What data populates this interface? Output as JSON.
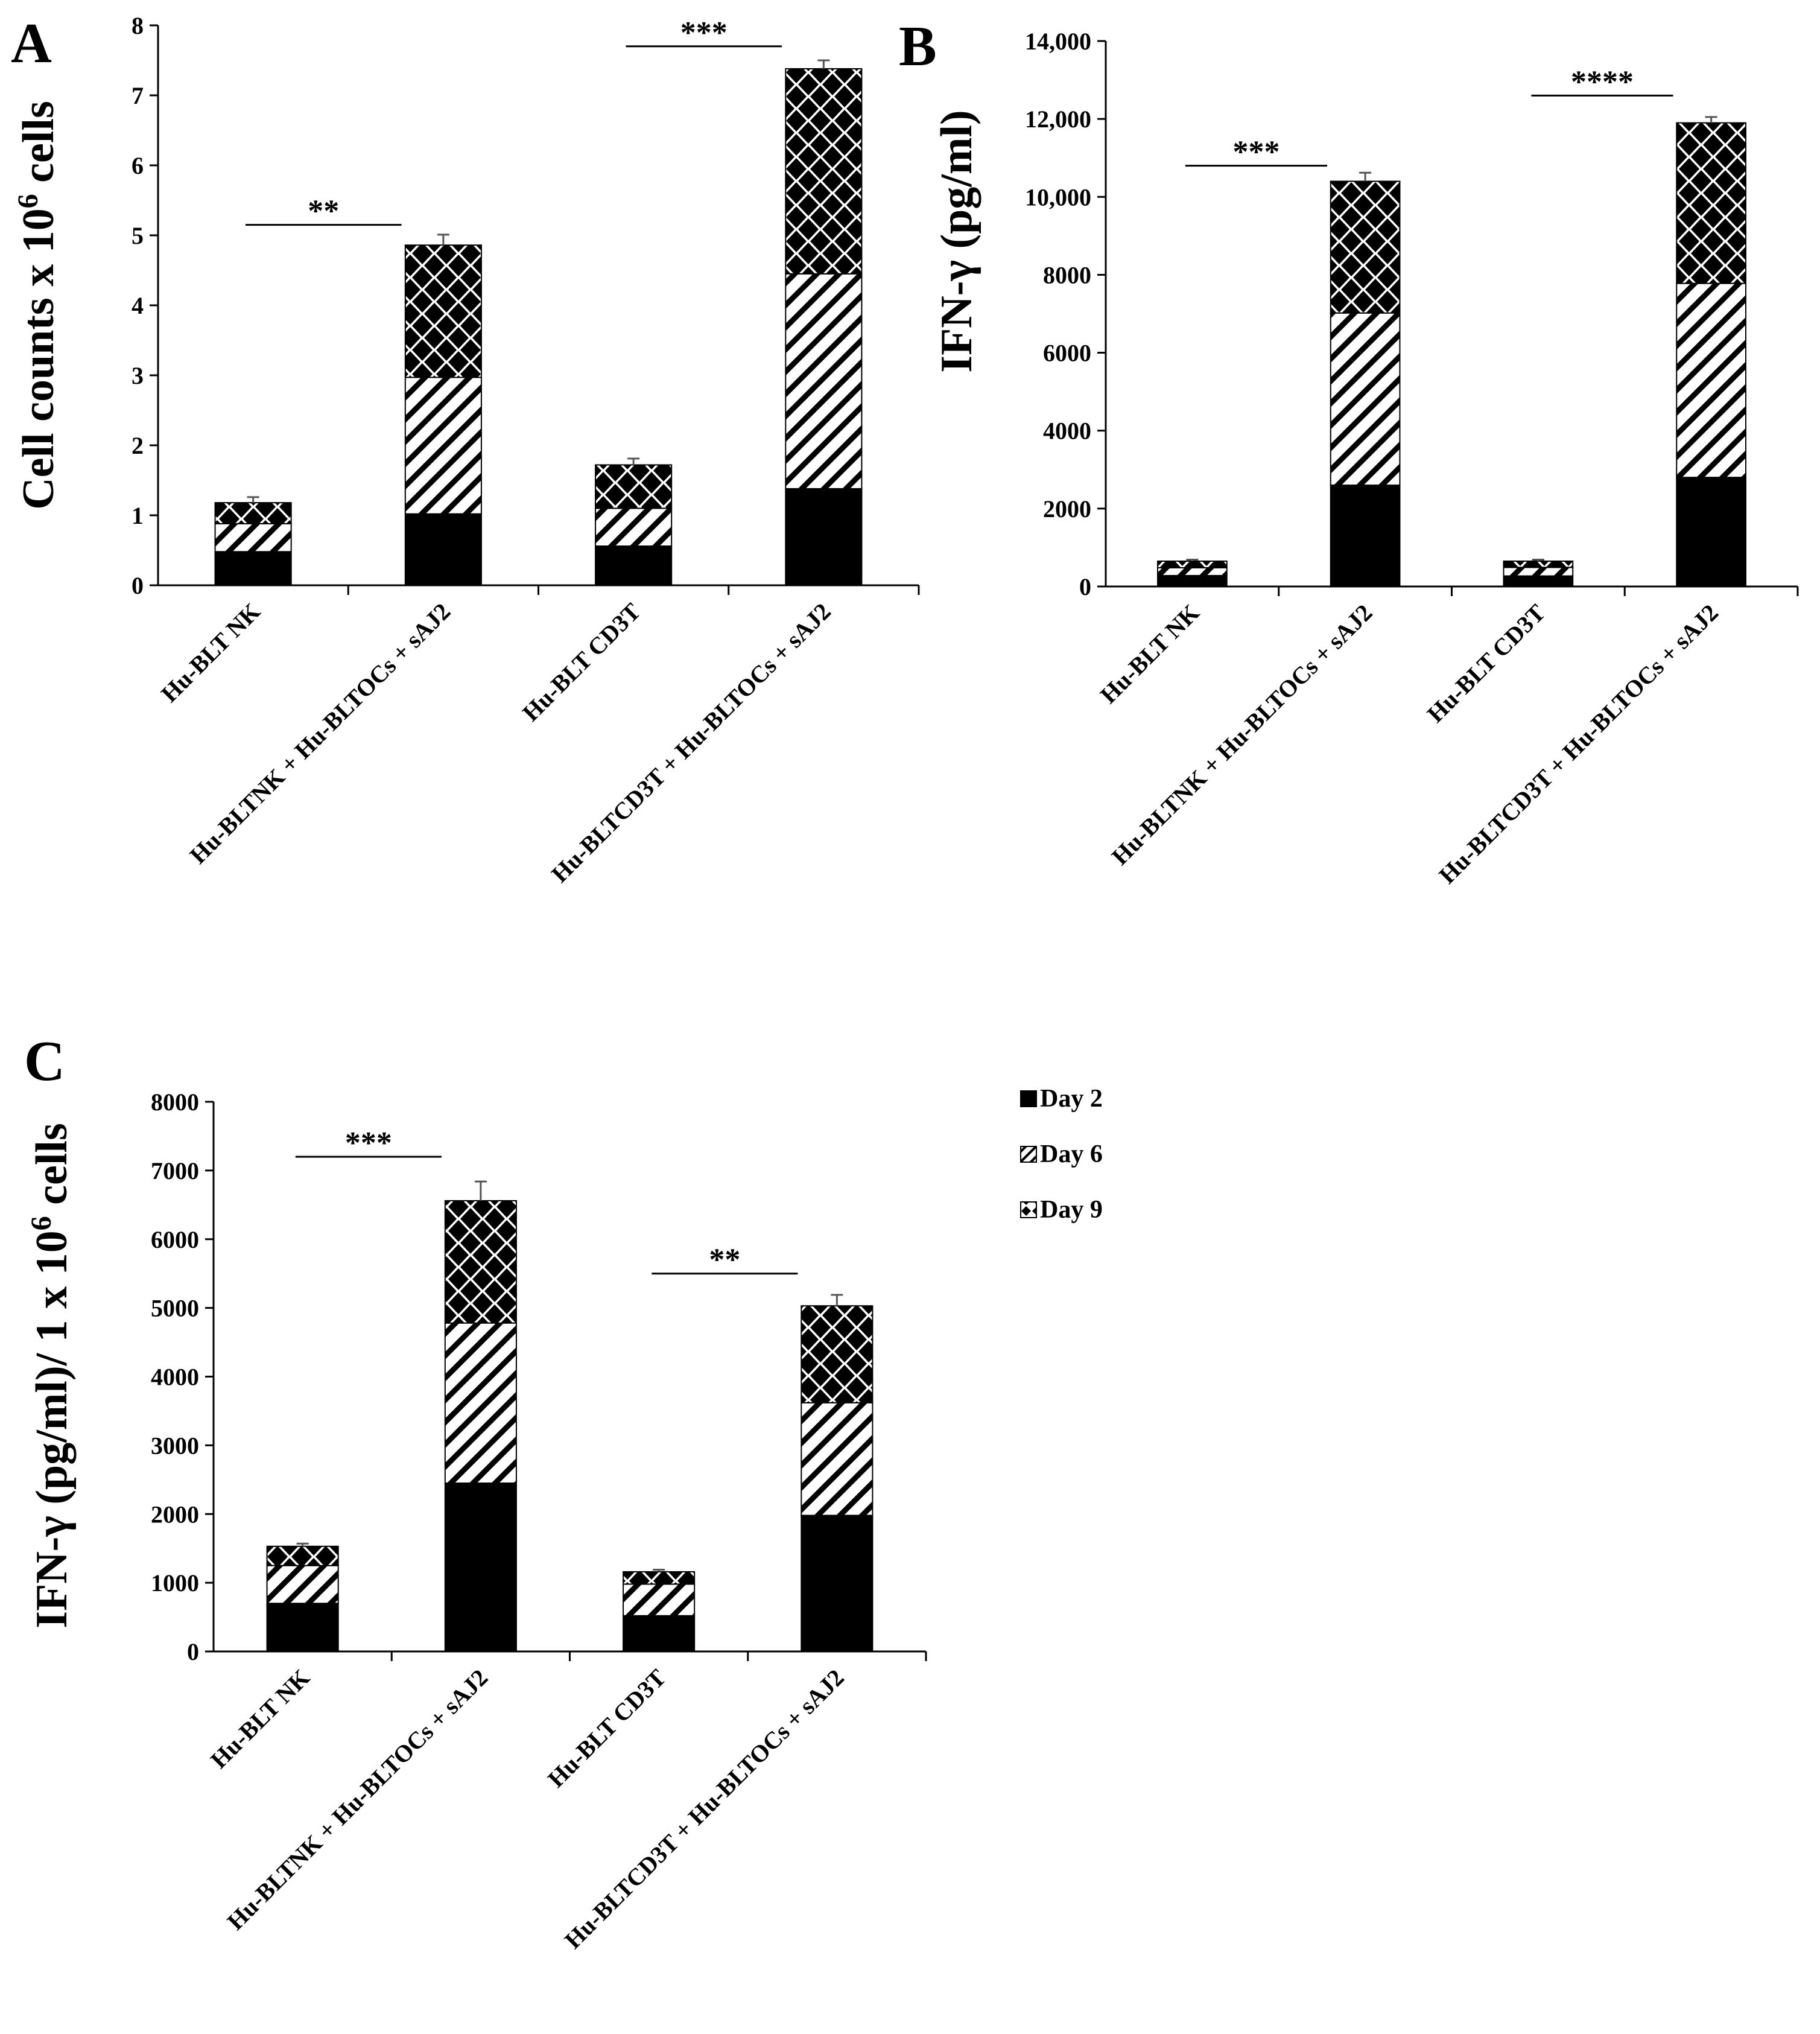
{
  "legend": {
    "items": [
      {
        "label": "Day 2",
        "pattern": "solid"
      },
      {
        "label": "Day 6",
        "pattern": "hatch"
      },
      {
        "label": "Day 9",
        "pattern": "diamond"
      }
    ]
  },
  "colors": {
    "ink": "#000000",
    "background": "#ffffff"
  },
  "chart_data": [
    {
      "panel": "A",
      "type": "bar",
      "stacked": true,
      "ylabel_main": "Cell counts x 10",
      "ylabel_sup": "6",
      "ylabel_tail": " cells",
      "ylim": [
        0,
        8
      ],
      "yticks": [
        0,
        1,
        2,
        3,
        4,
        5,
        6,
        7,
        8
      ],
      "ytick_labels": [
        "0",
        "1",
        "2",
        "3",
        "4",
        "5",
        "6",
        "7",
        "8"
      ],
      "categories": [
        "Hu-BLT NK",
        "Hu-BLTNK + Hu-BLTOCs + sAJ2",
        "Hu-BLT CD3T",
        "Hu-BLTCD3T + Hu-BLTOCs + sAJ2"
      ],
      "series": [
        {
          "name": "Day 2",
          "values": [
            0.48,
            1.02,
            0.56,
            1.38
          ]
        },
        {
          "name": "Day 6",
          "values": [
            0.4,
            1.95,
            0.54,
            3.07
          ]
        },
        {
          "name": "Day 9",
          "values": [
            0.3,
            1.89,
            0.62,
            2.93
          ]
        }
      ],
      "errors": [
        0.08,
        0.15,
        0.09,
        0.12
      ],
      "significance": [
        {
          "label": "**",
          "from": 0,
          "to": 1,
          "y": 5.15
        },
        {
          "label": "***",
          "from": 2,
          "to": 3,
          "y": 7.7
        }
      ]
    },
    {
      "panel": "B",
      "type": "bar",
      "stacked": true,
      "ylabel_main": "IFN-γ (pg/ml)",
      "ylabel_sup": "",
      "ylabel_tail": "",
      "ylim": [
        0,
        14000
      ],
      "yticks": [
        0,
        2000,
        4000,
        6000,
        8000,
        10000,
        12000,
        14000
      ],
      "ytick_labels": [
        "0",
        "2000",
        "4000",
        "6000",
        "8000",
        "10,000",
        "12,000",
        "14,000"
      ],
      "categories": [
        "Hu-BLT NK",
        "Hu-BLTNK + Hu-BLTOCs + sAJ2",
        "Hu-BLT CD3T",
        "Hu-BLTCD3T + Hu-BLTOCs + sAJ2"
      ],
      "series": [
        {
          "name": "Day 2",
          "values": [
            280,
            2600,
            270,
            2800
          ]
        },
        {
          "name": "Day 6",
          "values": [
            200,
            4420,
            220,
            4980
          ]
        },
        {
          "name": "Day 9",
          "values": [
            170,
            3380,
            160,
            4120
          ]
        }
      ],
      "errors": [
        40,
        220,
        40,
        150
      ],
      "significance": [
        {
          "label": "***",
          "from": 0,
          "to": 1,
          "y": 10800
        },
        {
          "label": "****",
          "from": 2,
          "to": 3,
          "y": 12600
        }
      ]
    },
    {
      "panel": "C",
      "type": "bar",
      "stacked": true,
      "ylabel_main": "IFN-γ (pg/ml)/ 1 x  10",
      "ylabel_sup": "6",
      "ylabel_tail": " cells",
      "ylim": [
        0,
        8000
      ],
      "yticks": [
        0,
        1000,
        2000,
        3000,
        4000,
        5000,
        6000,
        7000,
        8000
      ],
      "ytick_labels": [
        "0",
        "1000",
        "2000",
        "3000",
        "4000",
        "5000",
        "6000",
        "7000",
        "8000"
      ],
      "categories": [
        "Hu-BLT NK",
        "Hu-BLTNK + Hu-BLTOCs + sAJ2",
        "Hu-BLT CD3T",
        "Hu-BLTCD3T + Hu-BLTOCs + sAJ2"
      ],
      "series": [
        {
          "name": "Day 2",
          "values": [
            700,
            2450,
            520,
            1980
          ]
        },
        {
          "name": "Day 6",
          "values": [
            550,
            2330,
            460,
            1640
          ]
        },
        {
          "name": "Day 9",
          "values": [
            280,
            1780,
            180,
            1410
          ]
        }
      ],
      "errors": [
        40,
        280,
        30,
        160
      ],
      "significance": [
        {
          "label": "***",
          "from": 0,
          "to": 1,
          "y": 7200
        },
        {
          "label": "**",
          "from": 2,
          "to": 3,
          "y": 5500
        }
      ]
    }
  ]
}
